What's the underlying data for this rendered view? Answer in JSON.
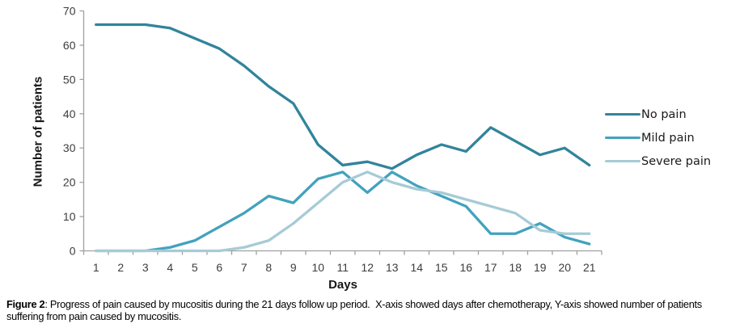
{
  "chart_data": {
    "type": "line",
    "title": "",
    "xlabel": "Days",
    "ylabel": "Number of patients",
    "x": [
      1,
      2,
      3,
      4,
      5,
      6,
      7,
      8,
      9,
      10,
      11,
      12,
      13,
      14,
      15,
      16,
      17,
      18,
      19,
      20,
      21
    ],
    "ylim": [
      0,
      70
    ],
    "yticks": [
      0,
      10,
      20,
      30,
      40,
      50,
      60,
      70
    ],
    "grid": false,
    "legend_position": "right",
    "series": [
      {
        "name": "No pain",
        "color": "#31849b",
        "values": [
          66,
          66,
          66,
          65,
          62,
          59,
          54,
          48,
          43,
          31,
          25,
          26,
          24,
          28,
          31,
          29,
          36,
          32,
          28,
          30,
          25
        ]
      },
      {
        "name": "Mild pain",
        "color": "#42a2bd",
        "values": [
          0,
          0,
          0,
          1,
          3,
          7,
          11,
          16,
          14,
          21,
          23,
          17,
          23,
          19,
          16,
          13,
          5,
          5,
          8,
          4,
          2
        ]
      },
      {
        "name": "Severe pain",
        "color": "#a6cbd6",
        "values": [
          0,
          0,
          0,
          0,
          0,
          0,
          1,
          3,
          8,
          14,
          20,
          23,
          20,
          18,
          17,
          15,
          13,
          11,
          6,
          5,
          5
        ]
      }
    ]
  },
  "axis": {
    "line_color": "#a0a0a0",
    "tick_label_color": "#3d3d3d"
  },
  "caption": {
    "label": "Figure 2",
    "text": ": Progress of pain caused by mucositis during the 21 days follow up period.  X-axis showed days after chemotherapy, Y-axis showed number of patients suffering from pain caused by mucositis."
  }
}
